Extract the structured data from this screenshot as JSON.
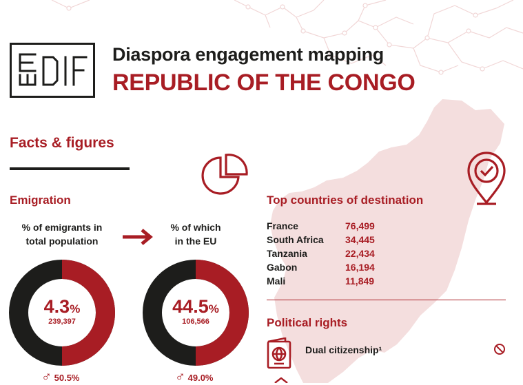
{
  "colors": {
    "accent": "#a81d24",
    "dark": "#1d1d1b",
    "map": "#f4dede"
  },
  "logo": {
    "text": "EUDIF",
    "icon": "eudif-logo"
  },
  "header": {
    "subtitle": "Diaspora engagement mapping",
    "title": "REPUBLIC OF THE CONGO"
  },
  "facts": {
    "heading": "Facts & figures",
    "icon": "pie-chart-icon"
  },
  "emigration": {
    "heading": "Emigration",
    "total": {
      "caption_line1": "% of emigrants in",
      "caption_line2": "total population",
      "percent": 4.3,
      "percent_text": "4.3",
      "percent_sign": "%",
      "count": "239,397",
      "male_symbol": "♂",
      "male_share": "50.5%"
    },
    "arrow_icon": "arrow-right-icon",
    "eu": {
      "caption_line1": "% of which",
      "caption_line2": "in the EU",
      "percent": 44.5,
      "percent_text": "44.5",
      "percent_sign": "%",
      "count": "106,566",
      "male_symbol": "♂",
      "male_share": "49.0%"
    }
  },
  "destinations": {
    "heading": "Top countries of destination",
    "icon": "location-check-icon",
    "rows": [
      {
        "country": "France",
        "value": "76,499"
      },
      {
        "country": "South Africa",
        "value": "34,445"
      },
      {
        "country": "Tanzania",
        "value": "22,434"
      },
      {
        "country": "Gabon",
        "value": "16,194"
      },
      {
        "country": "Mali",
        "value": "11,849"
      }
    ]
  },
  "political": {
    "heading": "Political rights",
    "dual": {
      "label": "Dual citizenship¹",
      "icon": "passport-icon",
      "status_icon": "prohibited-icon"
    }
  }
}
